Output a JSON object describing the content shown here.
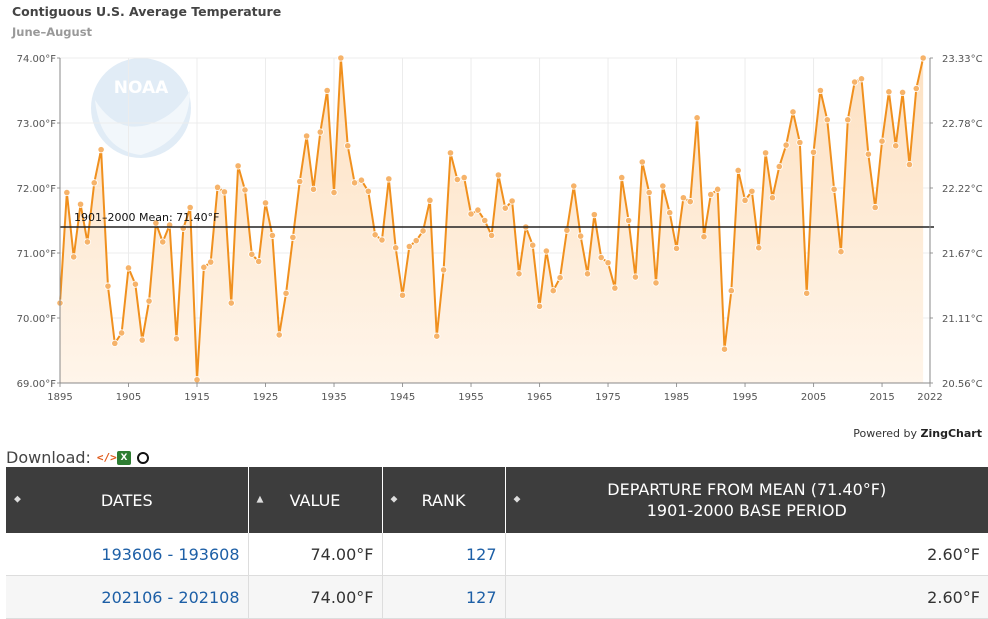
{
  "chart_data": {
    "type": "line",
    "title": "Contiguous U.S. Average Temperature",
    "subtitle": "June–August",
    "x": [
      1895,
      1896,
      1897,
      1898,
      1899,
      1900,
      1901,
      1902,
      1903,
      1904,
      1905,
      1906,
      1907,
      1908,
      1909,
      1910,
      1911,
      1912,
      1913,
      1914,
      1915,
      1916,
      1917,
      1918,
      1919,
      1920,
      1921,
      1922,
      1923,
      1924,
      1925,
      1926,
      1927,
      1928,
      1929,
      1930,
      1931,
      1932,
      1933,
      1934,
      1935,
      1936,
      1937,
      1938,
      1939,
      1940,
      1941,
      1942,
      1943,
      1944,
      1945,
      1946,
      1947,
      1948,
      1949,
      1950,
      1951,
      1952,
      1953,
      1954,
      1955,
      1956,
      1957,
      1958,
      1959,
      1960,
      1961,
      1962,
      1963,
      1964,
      1965,
      1966,
      1967,
      1968,
      1969,
      1970,
      1971,
      1972,
      1973,
      1974,
      1975,
      1976,
      1977,
      1978,
      1979,
      1980,
      1981,
      1982,
      1983,
      1984,
      1985,
      1986,
      1987,
      1988,
      1989,
      1990,
      1991,
      1992,
      1993,
      1994,
      1995,
      1996,
      1997,
      1998,
      1999,
      2000,
      2001,
      2002,
      2003,
      2004,
      2005,
      2006,
      2007,
      2008,
      2009,
      2010,
      2011,
      2012,
      2013,
      2014,
      2015,
      2016,
      2017,
      2018,
      2019,
      2020,
      2021
    ],
    "values": [
      70.23,
      71.93,
      70.94,
      71.75,
      71.17,
      72.08,
      72.59,
      70.49,
      69.61,
      69.77,
      70.77,
      70.52,
      69.66,
      70.26,
      71.46,
      71.17,
      71.43,
      69.68,
      71.38,
      71.7,
      69.05,
      70.78,
      70.86,
      72.01,
      71.94,
      70.23,
      72.34,
      71.97,
      70.98,
      70.87,
      71.77,
      71.27,
      69.74,
      70.38,
      71.24,
      72.1,
      72.8,
      71.98,
      72.86,
      73.5,
      71.93,
      74.0,
      72.65,
      72.08,
      72.12,
      71.95,
      71.28,
      71.2,
      72.14,
      71.08,
      70.35,
      71.1,
      71.19,
      71.34,
      71.81,
      69.72,
      70.74,
      72.54,
      72.13,
      72.16,
      71.6,
      71.66,
      71.5,
      71.27,
      72.2,
      71.69,
      71.8,
      70.68,
      71.4,
      71.12,
      70.18,
      71.03,
      70.42,
      70.62,
      71.35,
      72.03,
      71.26,
      70.68,
      71.59,
      70.93,
      70.85,
      70.46,
      72.16,
      71.5,
      70.63,
      72.4,
      71.93,
      70.54,
      72.03,
      71.62,
      71.07,
      71.85,
      71.79,
      73.08,
      71.25,
      71.9,
      71.98,
      69.52,
      70.42,
      72.27,
      71.81,
      71.95,
      71.08,
      72.54,
      71.85,
      72.33,
      72.66,
      73.17,
      72.7,
      70.38,
      72.55,
      73.5,
      73.05,
      71.98,
      71.02,
      73.05,
      73.63,
      73.68,
      72.52,
      71.7,
      72.72,
      73.48,
      72.65,
      73.47,
      72.36,
      73.53,
      74.0
    ],
    "xlabel": "",
    "ylabel": "",
    "ylim": [
      69.0,
      74.0
    ],
    "xlim": [
      1895,
      2022
    ],
    "x_ticks": [
      "1895",
      "1905",
      "1915",
      "1925",
      "1935",
      "1945",
      "1955",
      "1965",
      "1975",
      "1985",
      "1995",
      "2005",
      "2015",
      "2022"
    ],
    "y_ticks_left": [
      "69.00°F",
      "70.00°F",
      "71.00°F",
      "72.00°F",
      "73.00°F",
      "74.00°F"
    ],
    "y_ticks_right": [
      "20.56°C",
      "21.11°C",
      "21.67°C",
      "22.22°C",
      "22.78°C",
      "23.33°C"
    ],
    "mean": {
      "value": 71.4,
      "label": "1901–2000 Mean: 71.40°F"
    },
    "grid": true,
    "colors": {
      "line": "#f0901e",
      "fill_top": "#fde1c2",
      "fill_bottom": "#fff5ea",
      "marker": "#f6b36a",
      "mean_line": "#222222"
    }
  },
  "footer": {
    "powered_prefix": "Powered by ",
    "powered_brand": "ZingChart"
  },
  "download": {
    "label": "Download:",
    "icons": [
      "code-icon",
      "excel-icon",
      "circle-icon"
    ]
  },
  "table": {
    "headers": [
      "DATES",
      "VALUE",
      "RANK",
      "DEPARTURE FROM MEAN (71.40°F)",
      "1901-2000 BASE PERIOD"
    ],
    "rows": [
      {
        "dates": "193606 - 193608",
        "value": "74.00°F",
        "rank": "127",
        "departure": "2.60°F"
      },
      {
        "dates": "202106 - 202108",
        "value": "74.00°F",
        "rank": "127",
        "departure": "2.60°F"
      }
    ]
  }
}
